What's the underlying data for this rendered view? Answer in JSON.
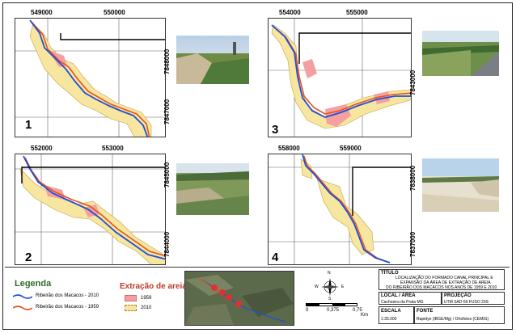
{
  "panels": [
    {
      "number": "1",
      "x_ticks": [
        "549000",
        "550000"
      ],
      "y_ticks": [
        "7848000",
        "7847000"
      ]
    },
    {
      "number": "3",
      "x_ticks": [
        "554000",
        "555000"
      ],
      "y_ticks": [
        "7843000"
      ]
    },
    {
      "number": "2",
      "x_ticks": [
        "552000",
        "553000"
      ],
      "y_ticks": [
        "7845000",
        "7844000"
      ]
    },
    {
      "number": "4",
      "x_ticks": [
        "558000",
        "559000"
      ],
      "y_ticks": [
        "7838000",
        "7837000"
      ]
    }
  ],
  "legend": {
    "title": "Legenda",
    "items": [
      "Ribeirão dos Macacos - 2010",
      "Ribeirão dos Macacos - 1959"
    ],
    "colors": {
      "river_2010": "#1f4fd6",
      "river_1959": "#e8501f"
    }
  },
  "extraction": {
    "title": "Extração de areia",
    "items": [
      "1959",
      "2010"
    ],
    "colors": {
      "y1959": "#f4a0a0",
      "y2010": "#f6e6a0"
    }
  },
  "scale": {
    "labels": [
      "0",
      "0,375",
      "0,75"
    ],
    "unit": "Km"
  },
  "north": {
    "letters": [
      "N",
      "S",
      "W",
      "E"
    ]
  },
  "titulo": {
    "header": "TÍTULO",
    "lines": [
      "LOCALIZAÇÃO DO FORMADO CANAL PRINCIPAL E",
      "EXPANSÃO DA ÁREA DE EXTRAÇÃO DE AREIA",
      "DO RIBEIRÃO DOS MACACOS NOS ANOS DE 1959 E 2010"
    ]
  },
  "local": {
    "header": "LOCAL / ÁREA",
    "value": "Cachoeira da Prata MG"
  },
  "projecao": {
    "header": "PROJEÇÃO",
    "value": "UTM SAD 69 FUSO 23S"
  },
  "escala": {
    "header": "ESCALA",
    "value": "1:35.000"
  },
  "fonte": {
    "header": "FONTE",
    "value": "Rapidye (IBGE/Mg) / Ortofotos (CEMIG)"
  }
}
